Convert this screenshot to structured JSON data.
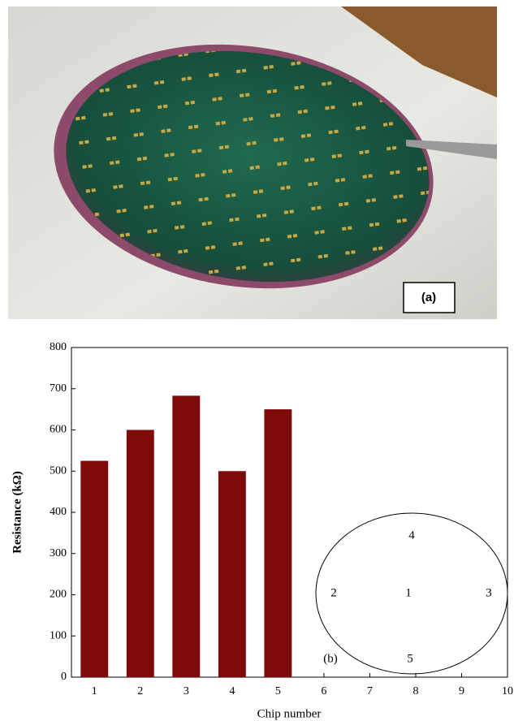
{
  "photo": {
    "label": "(a)"
  },
  "chart_data": {
    "type": "bar",
    "x_label": "Chip number",
    "y_label": "Resistance (kΩ)",
    "x": [
      1,
      2,
      3,
      4,
      5
    ],
    "values": [
      525,
      600,
      683,
      500,
      650
    ],
    "color": "#7f0a0a",
    "xlim": [
      0.5,
      10
    ],
    "xticks": [
      1,
      2,
      3,
      4,
      5,
      6,
      7,
      8,
      9,
      10
    ],
    "ylim": [
      0,
      800
    ],
    "yticks": [
      0,
      100,
      200,
      300,
      400,
      500,
      600,
      700,
      800
    ],
    "inset": {
      "labels": [
        "4",
        "2",
        "1",
        "3",
        "5"
      ],
      "panel_label": "(b)"
    }
  }
}
